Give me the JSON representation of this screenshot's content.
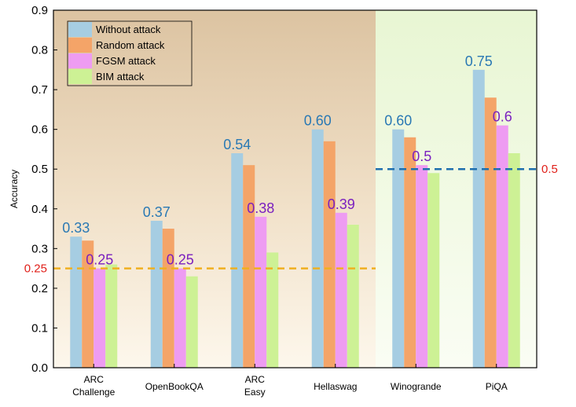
{
  "chart_data": {
    "type": "bar",
    "ylabel": "Accuracy",
    "ylim": [
      0.0,
      0.9
    ],
    "yticks": [
      "0.0",
      "0.1",
      "0.2",
      "0.3",
      "0.4",
      "0.5",
      "0.6",
      "0.7",
      "0.8",
      "0.9"
    ],
    "categories": [
      [
        "ARC",
        "Challenge"
      ],
      [
        "OpenBookQA"
      ],
      [
        "ARC",
        "Easy"
      ],
      [
        "Hellaswag"
      ],
      [
        "Winogrande"
      ],
      [
        "PiQA"
      ]
    ],
    "series": [
      {
        "name": "Without attack",
        "color": "#a6cde2",
        "values": [
          0.33,
          0.37,
          0.54,
          0.6,
          0.6,
          0.75
        ]
      },
      {
        "name": "Random attack",
        "color": "#f4a468",
        "values": [
          0.32,
          0.35,
          0.51,
          0.57,
          0.58,
          0.68
        ]
      },
      {
        "name": "FGSM attack",
        "color": "#ee9cf2",
        "values": [
          0.25,
          0.25,
          0.38,
          0.39,
          0.51,
          0.61
        ]
      },
      {
        "name": "BIM attack",
        "color": "#cdf195",
        "values": [
          0.26,
          0.23,
          0.29,
          0.36,
          0.49,
          0.54
        ]
      }
    ],
    "data_labels": [
      {
        "category_index": 0,
        "series_index": 0,
        "text": "0.33",
        "color": "#2a79b4"
      },
      {
        "category_index": 1,
        "series_index": 0,
        "text": "0.37",
        "color": "#2a79b4"
      },
      {
        "category_index": 2,
        "series_index": 0,
        "text": "0.54",
        "color": "#2a79b4"
      },
      {
        "category_index": 3,
        "series_index": 0,
        "text": "0.60",
        "color": "#2a79b4"
      },
      {
        "category_index": 4,
        "series_index": 0,
        "text": "0.60",
        "color": "#2a79b4"
      },
      {
        "category_index": 5,
        "series_index": 0,
        "text": "0.75",
        "color": "#2a79b4"
      },
      {
        "category_index": 0,
        "series_index": 2,
        "text": "0.25",
        "color": "#7a1fbf"
      },
      {
        "category_index": 1,
        "series_index": 2,
        "text": "0.25",
        "color": "#7a1fbf"
      },
      {
        "category_index": 2,
        "series_index": 2,
        "text": "0.38",
        "color": "#7a1fbf"
      },
      {
        "category_index": 3,
        "series_index": 2,
        "text": "0.39",
        "color": "#7a1fbf"
      },
      {
        "category_index": 4,
        "series_index": 2,
        "text": "0.5",
        "color": "#7a1fbf"
      },
      {
        "category_index": 5,
        "series_index": 2,
        "text": "0.6",
        "color": "#7a1fbf"
      }
    ],
    "reference_lines": [
      {
        "value": 0.25,
        "label": "0.25",
        "label_side": "left",
        "color": "#f0b020",
        "label_color": "#e0201a",
        "from_category": 0,
        "to_category": 3
      },
      {
        "value": 0.5,
        "label": "0.5",
        "label_side": "right",
        "color": "#1e6fae",
        "label_color": "#e0201a",
        "from_category": 4,
        "to_category": 5
      }
    ],
    "background_regions": [
      {
        "from_category": 0,
        "to_category": 3,
        "style": "tan-gradient"
      },
      {
        "from_category": 4,
        "to_category": 5,
        "style": "green-gradient"
      }
    ],
    "legend_position": "top-left",
    "grid": false
  }
}
